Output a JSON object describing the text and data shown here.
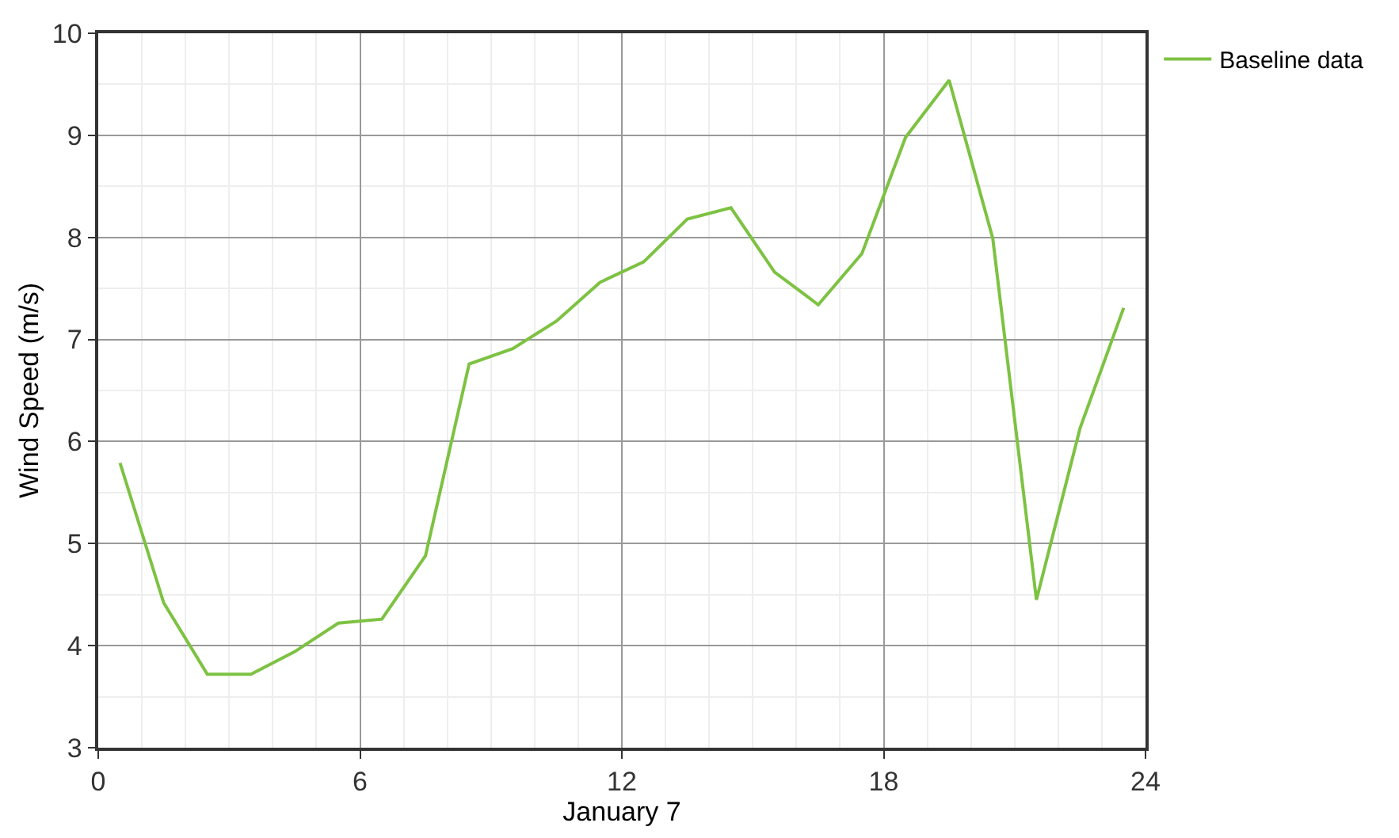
{
  "chart_data": {
    "type": "line",
    "xlabel": "January 7",
    "ylabel": "Wind Speed (m/s)",
    "x": [
      0.5,
      1.5,
      2.5,
      3.5,
      4.5,
      5.5,
      6.5,
      7.5,
      8.5,
      9.5,
      10.5,
      11.5,
      12.5,
      13.5,
      14.5,
      15.5,
      16.5,
      17.5,
      18.5,
      19.5,
      20.5,
      21.5,
      22.5,
      23.5
    ],
    "series": [
      {
        "name": "Baseline data",
        "color": "#7dc242",
        "values": [
          5.79,
          4.42,
          3.72,
          3.72,
          3.94,
          4.22,
          4.26,
          4.88,
          6.76,
          6.91,
          7.18,
          7.56,
          7.76,
          8.18,
          8.29,
          7.66,
          7.34,
          7.84,
          8.98,
          9.54,
          7.99,
          4.45,
          6.13,
          7.31
        ]
      }
    ],
    "xlim": [
      0,
      24
    ],
    "xticks": [
      0,
      6,
      12,
      18,
      24
    ],
    "ylim": [
      3,
      10
    ],
    "yticks": [
      3,
      4,
      5,
      6,
      7,
      8,
      9,
      10
    ],
    "grid": true,
    "legend": "top right",
    "marker": "none",
    "line_style": "solid"
  }
}
